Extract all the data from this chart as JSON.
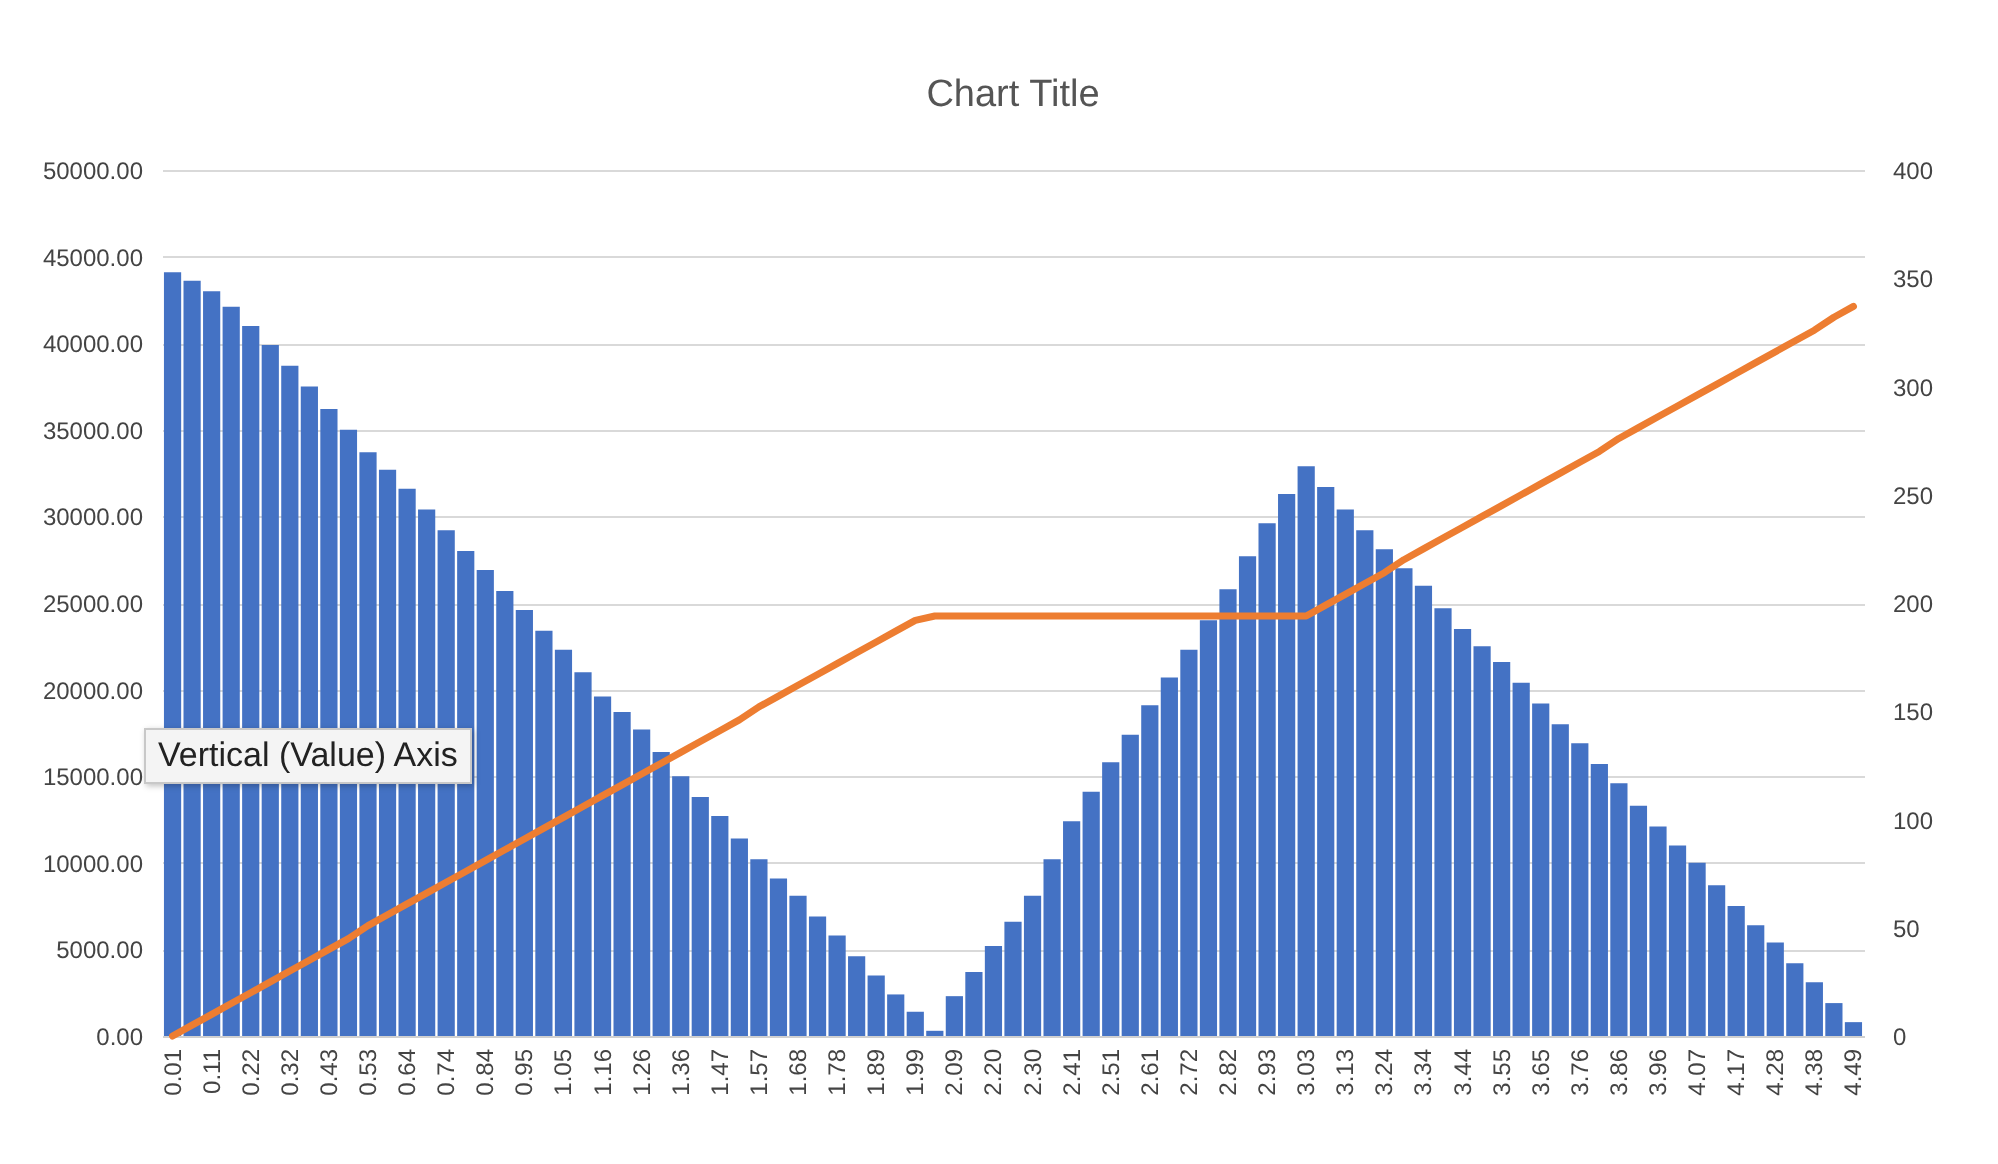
{
  "chart_data": {
    "type": "bar",
    "title": "Chart Title",
    "categories": [
      "0.01",
      null,
      "0.11",
      null,
      "0.22",
      null,
      "0.32",
      null,
      "0.43",
      null,
      "0.53",
      null,
      "0.64",
      null,
      "0.74",
      null,
      "0.84",
      null,
      "0.95",
      null,
      "1.05",
      null,
      "1.16",
      null,
      "1.26",
      null,
      "1.36",
      null,
      "1.47",
      null,
      "1.57",
      null,
      "1.68",
      null,
      "1.78",
      null,
      "1.89",
      null,
      "1.99",
      null,
      "2.09",
      null,
      "2.20",
      null,
      "2.30",
      null,
      "2.41",
      null,
      "2.51",
      null,
      "2.61",
      null,
      "2.72",
      null,
      "2.82",
      null,
      "2.93",
      null,
      "3.03",
      null,
      "3.13",
      null,
      "3.24",
      null,
      "3.34",
      null,
      "3.44",
      null,
      "3.55",
      null,
      "3.65",
      null,
      "3.76",
      null,
      "3.86",
      null,
      "3.96",
      null,
      "4.07",
      null,
      "4.17",
      null,
      "4.28",
      null,
      "4.38",
      null,
      "4.49"
    ],
    "series": [
      {
        "color": "#4472c4",
        "values": [
          44100,
          43600,
          43000,
          42100,
          41000,
          39900,
          38700,
          37500,
          36200,
          35000,
          33700,
          32700,
          31600,
          30400,
          29200,
          28000,
          26900,
          25700,
          24600,
          23400,
          22300,
          21000,
          19600,
          18700,
          17700,
          16400,
          15000,
          13800,
          12700,
          11400,
          10200,
          9100,
          8100,
          6900,
          5800,
          4600,
          3500,
          2400,
          1400,
          300,
          2300,
          3700,
          5200,
          6600,
          8100,
          10200,
          12400,
          14100,
          15800,
          17400,
          19100,
          20700,
          22300,
          24000,
          25800,
          27700,
          29600,
          31300,
          32900,
          31700,
          30400,
          29200,
          28100,
          27000,
          26000,
          24700,
          23500,
          22500,
          21600,
          20400,
          19200,
          18000,
          16900,
          15700,
          14600,
          13300,
          12100,
          11000,
          10000,
          8700,
          7500,
          6400,
          5400,
          4200,
          3100,
          1900,
          800
        ]
      },
      {
        "type": "line",
        "axis": "y2",
        "color": "#ed7d31",
        "values": [
          0,
          5,
          10,
          15,
          20,
          25,
          30,
          35,
          40,
          45,
          51,
          56,
          61,
          66,
          71,
          76,
          81,
          86,
          91,
          96,
          101,
          106,
          111,
          116,
          121,
          126,
          131,
          136,
          141,
          146,
          152,
          157,
          162,
          167,
          172,
          177,
          182,
          187,
          192,
          194,
          194,
          194,
          194,
          194,
          194,
          194,
          194,
          194,
          194,
          194,
          194,
          194,
          194,
          194,
          194,
          194,
          194,
          194,
          194,
          199,
          204,
          209,
          214,
          220,
          225,
          230,
          235,
          240,
          245,
          250,
          255,
          260,
          265,
          270,
          276,
          281,
          286,
          291,
          296,
          301,
          306,
          311,
          316,
          321,
          326,
          332,
          337
        ]
      }
    ],
    "ylim": [
      0,
      50000
    ],
    "yticks": [
      {
        "value": 0,
        "label": "0.00"
      },
      {
        "value": 5000,
        "label": "5000.00"
      },
      {
        "value": 10000,
        "label": "10000.00"
      },
      {
        "value": 15000,
        "label": "15000.00"
      },
      {
        "value": 20000,
        "label": "20000.00"
      },
      {
        "value": 25000,
        "label": "25000.00"
      },
      {
        "value": 30000,
        "label": "30000.00"
      },
      {
        "value": 35000,
        "label": "35000.00"
      },
      {
        "value": 40000,
        "label": "40000.00"
      },
      {
        "value": 45000,
        "label": "45000.00"
      },
      {
        "value": 50000,
        "label": "50000.00"
      }
    ],
    "y2lim": [
      0,
      400
    ],
    "y2ticks": [
      0,
      50,
      100,
      150,
      200,
      250,
      300,
      350,
      400
    ],
    "grid": "y",
    "line_style": "solid",
    "annotations": [
      "Vertical (Value) Axis"
    ]
  }
}
